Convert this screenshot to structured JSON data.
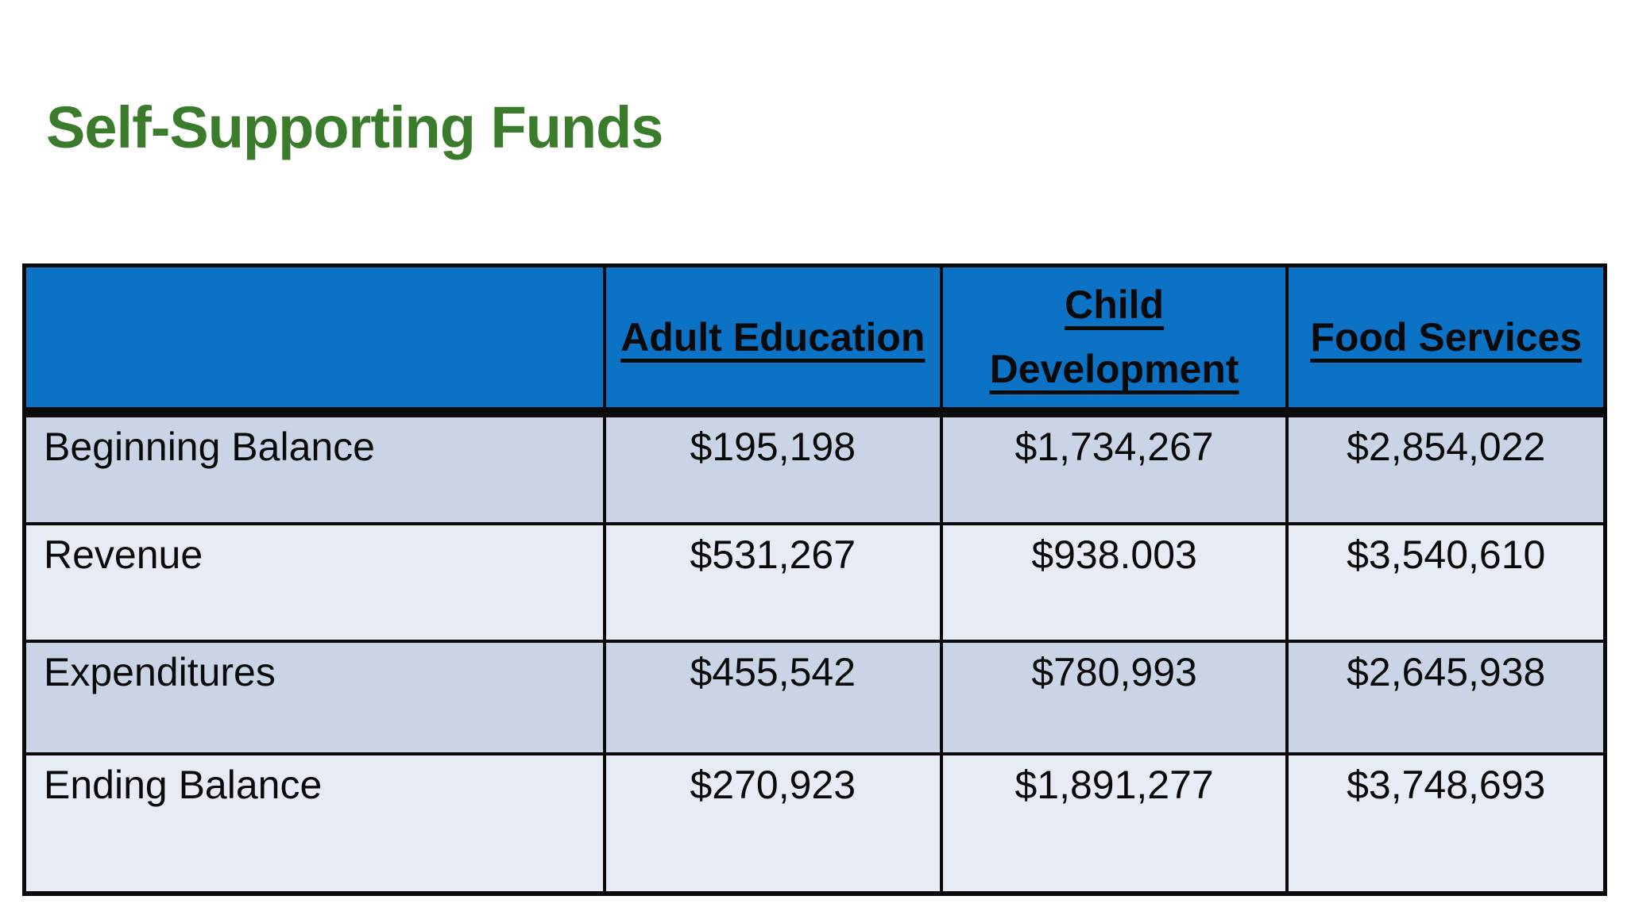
{
  "title": "Self-Supporting Funds",
  "table": {
    "columns": [
      "Adult Education",
      "Child Development",
      "Food Services"
    ],
    "rows": [
      {
        "label": "Beginning Balance",
        "values": [
          "$195,198",
          "$1,734,267",
          "$2,854,022"
        ]
      },
      {
        "label": "Revenue",
        "values": [
          "$531,267",
          "$938.003",
          "$3,540,610"
        ]
      },
      {
        "label": "Expenditures",
        "values": [
          "$455,542",
          "$780,993",
          "$2,645,938"
        ]
      },
      {
        "label": "Ending Balance",
        "values": [
          "$270,923",
          "$1,891,277",
          "$3,748,693"
        ]
      }
    ]
  },
  "colors": {
    "title_green": "#3A7C2B",
    "header_blue": "#0B72C6",
    "row_dark": "#CAD4E6",
    "row_light": "#E7EBF4",
    "border_black": "#0A0A0A"
  }
}
